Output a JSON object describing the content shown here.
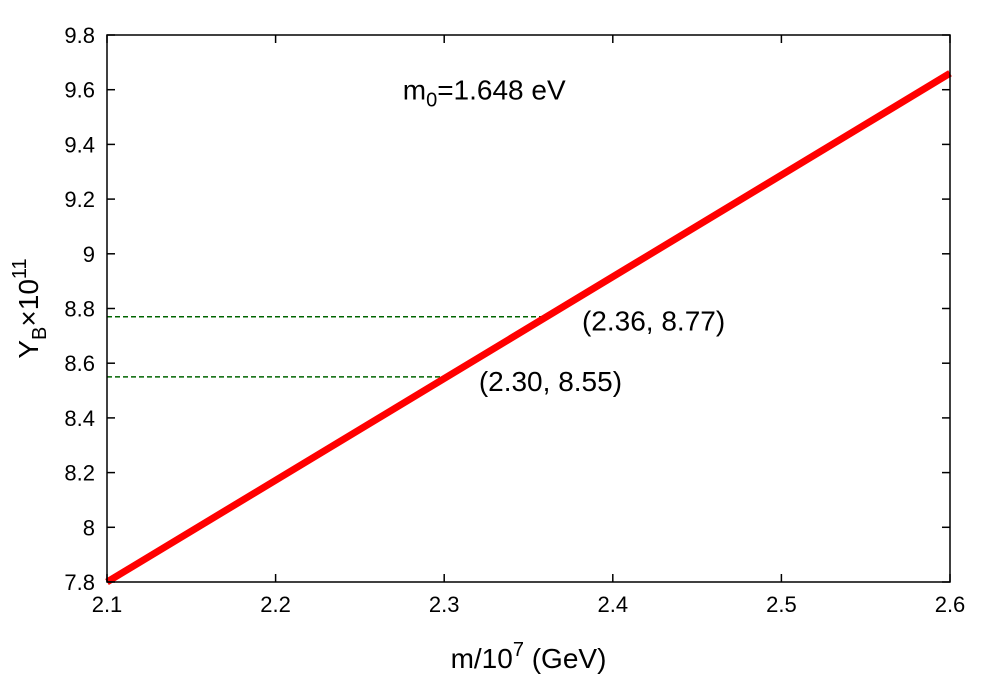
{
  "chart_data": {
    "type": "line",
    "title": "",
    "xlabel": {
      "base": "m/10",
      "superscript": "7",
      "suffix": " (GeV)"
    },
    "ylabel": {
      "base": "Y",
      "subscript": "B",
      "times": "×10",
      "superscript": "11"
    },
    "xlim": [
      2.1,
      2.6
    ],
    "ylim": [
      7.8,
      9.8
    ],
    "xticks": [
      2.1,
      2.2,
      2.3,
      2.4,
      2.5,
      2.6
    ],
    "xtick_labels": [
      "2.1",
      "2.2",
      "2.3",
      "2.4",
      "2.5",
      "2.6"
    ],
    "yticks": [
      7.8,
      8.0,
      8.2,
      8.4,
      8.6,
      8.8,
      9.0,
      9.2,
      9.4,
      9.6,
      9.8
    ],
    "ytick_labels": [
      "7.8",
      "8",
      "8.2",
      "8.4",
      "8.6",
      "8.8",
      "9",
      "9.2",
      "9.4",
      "9.6",
      "9.8"
    ],
    "grid": false,
    "series": [
      {
        "color": "#ff0000",
        "x": [
          2.1,
          2.6
        ],
        "y": [
          7.8,
          9.66
        ]
      }
    ],
    "reference_lines": [
      {
        "x_end": 2.36,
        "y": 8.77,
        "color": "#006400",
        "style": "dashed"
      },
      {
        "x_end": 2.3,
        "y": 8.55,
        "color": "#006400",
        "style": "dashed"
      }
    ],
    "annotations": {
      "m0": {
        "base": "m",
        "subscript": "0",
        "suffix": "=1.648 eV",
        "x": 2.3,
        "y": 9.6
      },
      "point_1": {
        "text": "(2.36, 8.77)",
        "x": 2.358,
        "y": 8.77
      },
      "point_2": {
        "text": "(2.30, 8.55)",
        "x": 2.298,
        "y": 8.55
      }
    }
  }
}
